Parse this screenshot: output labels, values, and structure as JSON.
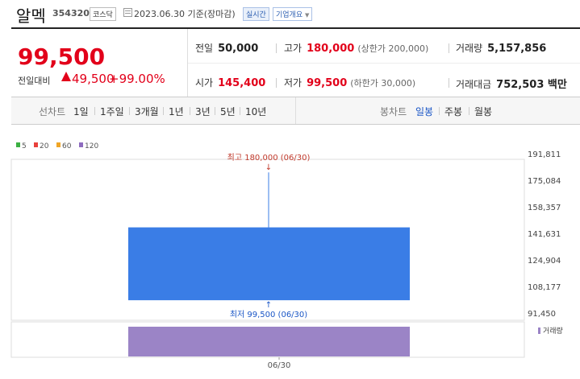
{
  "header": {
    "name": "알멕",
    "code": "354320",
    "market": "코스닥",
    "date": "2023.06.30 기준(장마감)",
    "live_badge": "실시간",
    "corp_info": "기업개요"
  },
  "summary": {
    "price": "99,500",
    "change_label": "전일대비",
    "change": "49,500",
    "change_pct": "+99.00%",
    "prev_label": "전일",
    "prev": "50,000",
    "high_label": "고가",
    "high": "180,000",
    "upper_limit": "(상한가 200,000)",
    "volume_label": "거래량",
    "volume": "5,157,856",
    "open_label": "시가",
    "open": "145,400",
    "low_label": "저가",
    "low": "99,500",
    "lower_limit": "(하한가 30,000)",
    "amount_label": "거래대금",
    "amount": "752,503 백만"
  },
  "tabs": {
    "line_label": "선차트",
    "line_items": [
      "1일",
      "1주일",
      "3개월",
      "1년",
      "3년",
      "5년",
      "10년"
    ],
    "candle_label": "봉차트",
    "candle_items": [
      "일봉",
      "주봉",
      "월봉"
    ],
    "selected_candle": "일봉"
  },
  "colors": {
    "up": "#e2001a",
    "down": "#1a56c6",
    "candle": "#3a7de6",
    "volume": "#9b84c6"
  },
  "chart_data": {
    "type": "candlestick",
    "legend": [
      {
        "name": "5",
        "color": "#3cb043"
      },
      {
        "name": "20",
        "color": "#e8413c"
      },
      {
        "name": "60",
        "color": "#f0a526"
      },
      {
        "name": "120",
        "color": "#8e6bbf"
      }
    ],
    "categories": [
      "06/30"
    ],
    "ohlc": [
      {
        "open": 145400,
        "high": 180000,
        "low": 99500,
        "close": 99500
      }
    ],
    "volume": [
      5157856
    ],
    "volume_label": "거래량",
    "y_ticks": [
      "191,811",
      "175,084",
      "158,357",
      "141,631",
      "124,904",
      "108,177",
      "91,450"
    ],
    "ylim": [
      91450,
      191811
    ],
    "annotations": {
      "high": "최고 180,000 (06/30)",
      "low": "최저 99,500 (06/30)"
    }
  }
}
